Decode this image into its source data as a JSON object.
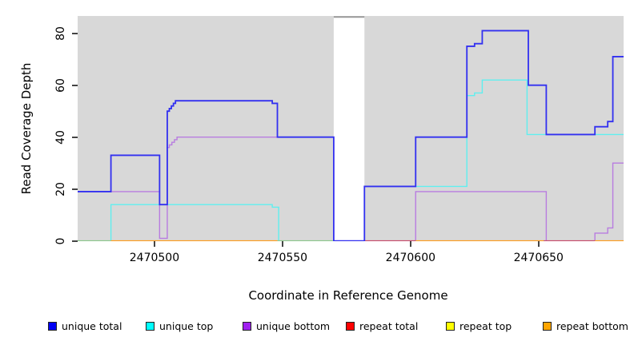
{
  "figure": {
    "y_axis_label": "Read Coverage Depth",
    "x_axis_label": "Coordinate in Reference Genome",
    "plot_bg": "#d8d8d8",
    "tick_color": "#444444",
    "gap_band_color": "#ffffff",
    "gap_band_top_border": "#9a9a9a"
  },
  "legend": {
    "items": [
      {
        "label": "unique total",
        "color": "#0000f5"
      },
      {
        "label": "unique top",
        "color": "#00ffff"
      },
      {
        "label": "unique bottom",
        "color": "#a020f0"
      },
      {
        "label": "repeat total",
        "color": "#ff0000"
      },
      {
        "label": "repeat top",
        "color": "#ffff00"
      },
      {
        "label": "repeat bottom",
        "color": "#ffa500"
      }
    ]
  },
  "chart_data": {
    "type": "line",
    "step": true,
    "title": "",
    "xlabel": "Coordinate in Reference Genome",
    "ylabel": "Read Coverage Depth",
    "xlim": [
      2470470,
      2470683.2
    ],
    "ylim": [
      0,
      86.7
    ],
    "x_ticks": [
      2470500,
      2470550,
      2470600,
      2470650
    ],
    "y_ticks": [
      0,
      20,
      40,
      60,
      80
    ],
    "grid": false,
    "legend_position": "bottom",
    "gap_band": {
      "start": 2470570,
      "end": 2470582
    },
    "series": [
      {
        "name": "repeat total",
        "color": "#cc2222",
        "width": 1.4,
        "segments": [
          [
            2470470,
            2470683.2,
            0
          ]
        ]
      },
      {
        "name": "repeat top",
        "color": "#ffee00",
        "width": 1.4,
        "segments": [
          [
            2470470,
            2470683.2,
            0
          ]
        ]
      },
      {
        "name": "repeat bottom",
        "color": "#ff9d1c",
        "width": 1.4,
        "segments": [
          [
            2470470,
            2470683.2,
            0
          ]
        ]
      },
      {
        "name": "unique bottom",
        "color": "#b87ce0",
        "width": 1.4,
        "segments": [
          [
            2470470,
            2470502,
            19
          ],
          [
            2470502,
            2470505,
            1
          ],
          [
            2470505,
            2470505.8,
            36
          ],
          [
            2470505.8,
            2470506.8,
            37
          ],
          [
            2470506.8,
            2470507.8,
            38
          ],
          [
            2470507.8,
            2470508.8,
            39
          ],
          [
            2470508.8,
            2470570,
            40
          ],
          [
            2470570,
            2470602,
            0
          ],
          [
            2470602,
            2470653,
            19
          ],
          [
            2470653,
            2470672,
            0
          ],
          [
            2470672,
            2470677,
            3
          ],
          [
            2470677,
            2470679,
            5
          ],
          [
            2470679,
            2470683.2,
            30
          ]
        ]
      },
      {
        "name": "unique top",
        "color": "#5fefef",
        "width": 1.4,
        "segments": [
          [
            2470470,
            2470483,
            0
          ],
          [
            2470483,
            2470546,
            14
          ],
          [
            2470546,
            2470548.5,
            13
          ],
          [
            2470548.5,
            2470582,
            0
          ],
          [
            2470582,
            2470622,
            21
          ],
          [
            2470622,
            2470625,
            56
          ],
          [
            2470625,
            2470628,
            57
          ],
          [
            2470628,
            2470645.5,
            62
          ],
          [
            2470645.5,
            2470683.2,
            41
          ]
        ]
      },
      {
        "name": "unique total",
        "color": "#3230f0",
        "width": 1.8,
        "segments": [
          [
            2470470,
            2470483,
            19
          ],
          [
            2470483,
            2470502,
            33
          ],
          [
            2470502,
            2470505,
            14
          ],
          [
            2470505,
            2470505.8,
            50
          ],
          [
            2470505.8,
            2470506.6,
            51
          ],
          [
            2470506.6,
            2470507.4,
            52
          ],
          [
            2470507.4,
            2470508.2,
            53
          ],
          [
            2470508.2,
            2470546,
            54
          ],
          [
            2470546,
            2470548,
            53
          ],
          [
            2470548,
            2470570,
            40
          ],
          [
            2470570,
            2470582,
            0
          ],
          [
            2470582,
            2470602,
            21
          ],
          [
            2470602,
            2470622,
            40
          ],
          [
            2470622,
            2470625,
            75
          ],
          [
            2470625,
            2470628,
            76
          ],
          [
            2470628,
            2470646,
            81
          ],
          [
            2470646,
            2470653,
            60
          ],
          [
            2470653,
            2470672,
            41
          ],
          [
            2470672,
            2470677,
            44
          ],
          [
            2470677,
            2470679,
            46
          ],
          [
            2470679,
            2470683.2,
            71
          ]
        ]
      }
    ],
    "baseline_segments": [
      {
        "start": 2470470,
        "end": 2470483,
        "color": "#8cc88c"
      },
      {
        "start": 2470483,
        "end": 2470548,
        "color": "#ff9d1c"
      },
      {
        "start": 2470548,
        "end": 2470570,
        "color": "#8cc88c"
      },
      {
        "start": 2470582,
        "end": 2470602,
        "color": "#c84a6a"
      },
      {
        "start": 2470602,
        "end": 2470652,
        "color": "#ff9d1c"
      },
      {
        "start": 2470652,
        "end": 2470672,
        "color": "#c84a6a"
      },
      {
        "start": 2470672,
        "end": 2470683.2,
        "color": "#ff9d1c"
      }
    ]
  }
}
